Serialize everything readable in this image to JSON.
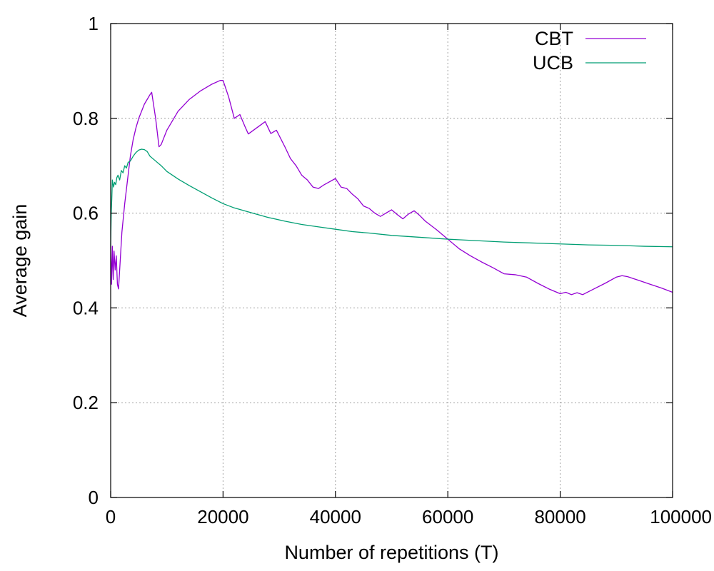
{
  "chart_data": {
    "type": "line",
    "title": "",
    "xlabel": "Number of repetitions (T)",
    "ylabel": "Average gain",
    "xlim": [
      0,
      100000
    ],
    "ylim": [
      0,
      1
    ],
    "x_ticks": [
      0,
      20000,
      40000,
      60000,
      80000,
      100000
    ],
    "x_tick_labels": [
      "0",
      "20000",
      "40000",
      "60000",
      "80000",
      "100000"
    ],
    "y_ticks": [
      0,
      0.2,
      0.4,
      0.6,
      0.8,
      1
    ],
    "y_tick_labels": [
      "0",
      "0.2",
      "0.4",
      "0.6",
      "0.8",
      "1"
    ],
    "grid": true,
    "legend_position": "top-right",
    "series": [
      {
        "name": "CBT",
        "color": "#9400d3",
        "points": [
          [
            0,
            0.53
          ],
          [
            150,
            0.45
          ],
          [
            300,
            0.53
          ],
          [
            450,
            0.46
          ],
          [
            600,
            0.52
          ],
          [
            800,
            0.48
          ],
          [
            1000,
            0.51
          ],
          [
            1200,
            0.45
          ],
          [
            1400,
            0.44
          ],
          [
            1700,
            0.5
          ],
          [
            2000,
            0.56
          ],
          [
            2500,
            0.62
          ],
          [
            3000,
            0.67
          ],
          [
            3500,
            0.72
          ],
          [
            4000,
            0.755
          ],
          [
            4500,
            0.78
          ],
          [
            5000,
            0.8
          ],
          [
            5500,
            0.815
          ],
          [
            6000,
            0.83
          ],
          [
            6500,
            0.84
          ],
          [
            7000,
            0.85
          ],
          [
            7300,
            0.855
          ],
          [
            8000,
            0.8
          ],
          [
            8600,
            0.74
          ],
          [
            9000,
            0.745
          ],
          [
            10000,
            0.775
          ],
          [
            12000,
            0.815
          ],
          [
            14000,
            0.84
          ],
          [
            16000,
            0.858
          ],
          [
            18000,
            0.872
          ],
          [
            19500,
            0.88
          ],
          [
            20000,
            0.88
          ],
          [
            21000,
            0.845
          ],
          [
            22000,
            0.8
          ],
          [
            23000,
            0.808
          ],
          [
            24000,
            0.78
          ],
          [
            24500,
            0.767
          ],
          [
            26000,
            0.78
          ],
          [
            27500,
            0.793
          ],
          [
            28500,
            0.768
          ],
          [
            29500,
            0.775
          ],
          [
            31000,
            0.74
          ],
          [
            32000,
            0.715
          ],
          [
            33000,
            0.7
          ],
          [
            34000,
            0.68
          ],
          [
            35000,
            0.67
          ],
          [
            36000,
            0.655
          ],
          [
            37000,
            0.652
          ],
          [
            38000,
            0.66
          ],
          [
            40000,
            0.673
          ],
          [
            41000,
            0.655
          ],
          [
            42000,
            0.652
          ],
          [
            43000,
            0.64
          ],
          [
            44000,
            0.63
          ],
          [
            45000,
            0.615
          ],
          [
            46000,
            0.61
          ],
          [
            47000,
            0.6
          ],
          [
            48000,
            0.593
          ],
          [
            49000,
            0.6
          ],
          [
            50000,
            0.607
          ],
          [
            51000,
            0.597
          ],
          [
            52000,
            0.588
          ],
          [
            53000,
            0.598
          ],
          [
            54000,
            0.605
          ],
          [
            55000,
            0.595
          ],
          [
            56000,
            0.583
          ],
          [
            58000,
            0.565
          ],
          [
            60000,
            0.545
          ],
          [
            62000,
            0.525
          ],
          [
            64000,
            0.51
          ],
          [
            66000,
            0.497
          ],
          [
            68000,
            0.485
          ],
          [
            70000,
            0.472
          ],
          [
            72000,
            0.47
          ],
          [
            74000,
            0.465
          ],
          [
            76000,
            0.452
          ],
          [
            78000,
            0.44
          ],
          [
            80000,
            0.43
          ],
          [
            81000,
            0.433
          ],
          [
            82000,
            0.428
          ],
          [
            83000,
            0.432
          ],
          [
            84000,
            0.428
          ],
          [
            86000,
            0.44
          ],
          [
            88000,
            0.452
          ],
          [
            90000,
            0.465
          ],
          [
            91000,
            0.468
          ],
          [
            92000,
            0.466
          ],
          [
            94000,
            0.458
          ],
          [
            96000,
            0.45
          ],
          [
            98000,
            0.442
          ],
          [
            100000,
            0.433
          ]
        ]
      },
      {
        "name": "UCB",
        "color": "#009e73",
        "points": [
          [
            0,
            0.53
          ],
          [
            100,
            0.6
          ],
          [
            200,
            0.63
          ],
          [
            300,
            0.67
          ],
          [
            500,
            0.655
          ],
          [
            700,
            0.665
          ],
          [
            900,
            0.66
          ],
          [
            1100,
            0.675
          ],
          [
            1300,
            0.68
          ],
          [
            1600,
            0.67
          ],
          [
            1900,
            0.69
          ],
          [
            2200,
            0.685
          ],
          [
            2500,
            0.7
          ],
          [
            2800,
            0.695
          ],
          [
            3100,
            0.707
          ],
          [
            3500,
            0.71
          ],
          [
            4000,
            0.72
          ],
          [
            4500,
            0.728
          ],
          [
            5000,
            0.733
          ],
          [
            5500,
            0.735
          ],
          [
            6000,
            0.734
          ],
          [
            6500,
            0.73
          ],
          [
            7000,
            0.72
          ],
          [
            8000,
            0.71
          ],
          [
            9000,
            0.7
          ],
          [
            10000,
            0.688
          ],
          [
            12000,
            0.672
          ],
          [
            14000,
            0.658
          ],
          [
            16000,
            0.645
          ],
          [
            18000,
            0.632
          ],
          [
            20000,
            0.62
          ],
          [
            22000,
            0.611
          ],
          [
            25000,
            0.601
          ],
          [
            28000,
            0.591
          ],
          [
            31000,
            0.583
          ],
          [
            34000,
            0.576
          ],
          [
            37000,
            0.571
          ],
          [
            40000,
            0.566
          ],
          [
            43000,
            0.561
          ],
          [
            46000,
            0.558
          ],
          [
            50000,
            0.553
          ],
          [
            55000,
            0.549
          ],
          [
            60000,
            0.545
          ],
          [
            65000,
            0.542
          ],
          [
            70000,
            0.539
          ],
          [
            75000,
            0.537
          ],
          [
            80000,
            0.535
          ],
          [
            85000,
            0.533
          ],
          [
            90000,
            0.532
          ],
          [
            95000,
            0.53
          ],
          [
            100000,
            0.529
          ]
        ]
      }
    ]
  }
}
